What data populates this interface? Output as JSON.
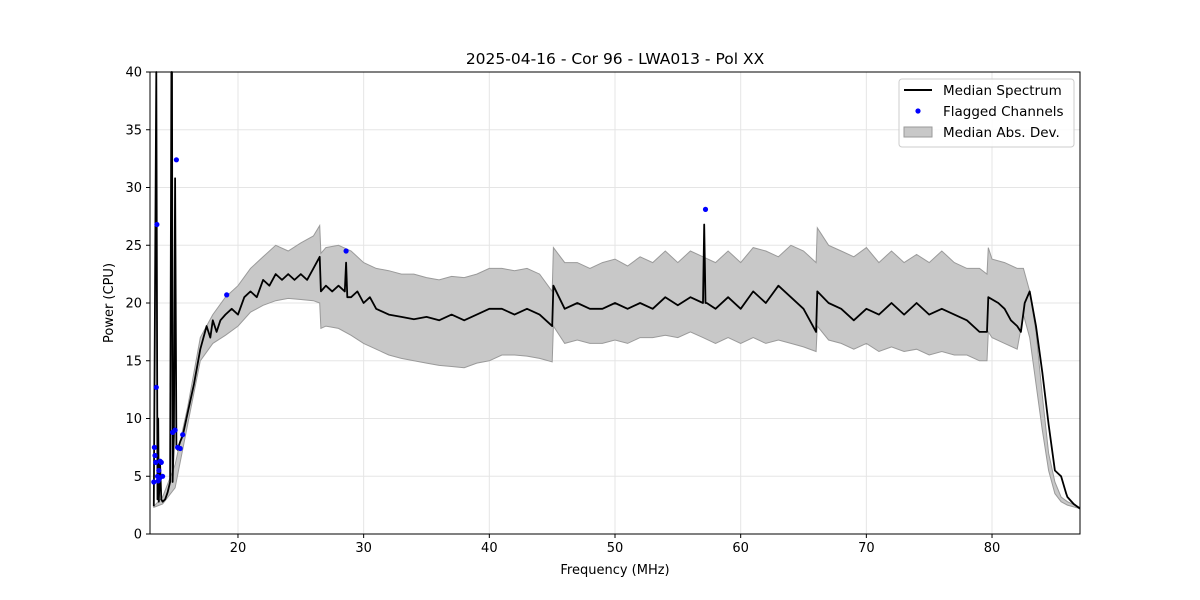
{
  "chart_data": {
    "type": "line",
    "title": "2025-04-16 - Cor 96 - LWA013 - Pol XX",
    "xlabel": "Frequency (MHz)",
    "ylabel": "Power (CPU)",
    "xlim": [
      13.0,
      87.0
    ],
    "ylim": [
      0,
      40
    ],
    "xticks": [
      20,
      30,
      40,
      50,
      60,
      70,
      80
    ],
    "yticks": [
      0,
      5,
      10,
      15,
      20,
      25,
      30,
      35,
      40
    ],
    "grid": true,
    "legend_position": "top-right",
    "colors": {
      "median": "#000000",
      "flagged": "#0000ff",
      "mad_fill": "#c8c8c8",
      "mad_edge": "#9a9a9a"
    },
    "series": [
      {
        "name": "Median Spectrum",
        "kind": "line",
        "x": [
          13.3,
          13.5,
          13.6,
          13.65,
          13.7,
          13.8,
          13.9,
          14.0,
          14.2,
          14.4,
          14.6,
          14.7,
          14.75,
          14.8,
          14.9,
          15.0,
          15.1,
          15.2,
          15.4,
          15.6,
          16.0,
          16.5,
          17.0,
          17.5,
          17.8,
          18.0,
          18.3,
          18.6,
          19.0,
          19.5,
          20.0,
          20.5,
          21.0,
          21.5,
          22.0,
          22.5,
          23.0,
          23.5,
          24.0,
          24.5,
          25.0,
          25.5,
          26.0,
          26.5,
          26.6,
          27.0,
          27.5,
          28.0,
          28.5,
          28.6,
          28.7,
          29.0,
          29.5,
          30.0,
          30.5,
          31.0,
          32.0,
          33.0,
          34.0,
          35.0,
          36.0,
          37.0,
          38.0,
          39.0,
          40.0,
          41.0,
          42.0,
          43.0,
          44.0,
          45.0,
          45.1,
          46.0,
          47.0,
          48.0,
          49.0,
          50.0,
          51.0,
          52.0,
          53.0,
          54.0,
          55.0,
          56.0,
          57.0,
          57.1,
          57.2,
          57.3,
          58.0,
          59.0,
          60.0,
          61.0,
          62.0,
          63.0,
          64.0,
          65.0,
          66.0,
          66.1,
          67.0,
          68.0,
          69.0,
          70.0,
          71.0,
          72.0,
          73.0,
          74.0,
          75.0,
          76.0,
          77.0,
          78.0,
          79.0,
          79.6,
          79.7,
          80.5,
          81.0,
          81.5,
          82.0,
          82.3,
          82.6,
          83.0,
          83.5,
          84.0,
          84.5,
          85.0,
          85.5,
          85.9,
          86.0,
          86.5,
          87.0
        ],
        "y": [
          2.4,
          40.0,
          3.0,
          10.0,
          2.8,
          6.0,
          3.0,
          2.8,
          3.0,
          3.6,
          4.5,
          40.0,
          40.0,
          4.5,
          8.5,
          30.8,
          7.5,
          7.3,
          8.0,
          8.5,
          10.5,
          13.0,
          16.0,
          18.0,
          17.0,
          18.5,
          17.5,
          18.5,
          19.0,
          19.5,
          19.0,
          20.5,
          21.0,
          20.5,
          22.0,
          21.5,
          22.5,
          22.0,
          22.5,
          22.0,
          22.5,
          22.0,
          23.0,
          24.0,
          21.0,
          21.5,
          21.0,
          21.5,
          21.0,
          23.5,
          20.5,
          20.5,
          21.0,
          20.0,
          20.5,
          19.5,
          19.0,
          18.8,
          18.6,
          18.8,
          18.5,
          19.0,
          18.5,
          19.0,
          19.5,
          19.5,
          19.0,
          19.5,
          19.0,
          18.0,
          21.5,
          19.5,
          20.0,
          19.5,
          19.5,
          20.0,
          19.5,
          20.0,
          19.5,
          20.5,
          19.8,
          20.5,
          20.0,
          26.8,
          20.0,
          20.0,
          19.5,
          20.5,
          19.5,
          21.0,
          20.0,
          21.5,
          20.5,
          19.5,
          17.5,
          21.0,
          20.0,
          19.5,
          18.5,
          19.5,
          19.0,
          20.0,
          19.0,
          20.0,
          19.0,
          19.5,
          19.0,
          18.5,
          17.5,
          17.5,
          20.5,
          20.0,
          19.5,
          18.5,
          18.0,
          17.5,
          20.0,
          21.0,
          18.0,
          14.0,
          9.5,
          5.5,
          5.0,
          3.5,
          3.2,
          2.6,
          2.2
        ]
      },
      {
        "name": "Flagged Channels",
        "kind": "scatter",
        "x": [
          13.3,
          13.35,
          13.4,
          13.45,
          13.5,
          13.55,
          13.6,
          13.65,
          13.7,
          13.75,
          13.8,
          13.9,
          14.0,
          14.8,
          15.0,
          15.1,
          15.2,
          15.4,
          15.6,
          19.1,
          28.6,
          57.2
        ],
        "y": [
          4.5,
          7.5,
          6.8,
          6.2,
          12.7,
          26.8,
          5.0,
          4.6,
          5.5,
          4.8,
          6.3,
          6.2,
          5.0,
          8.8,
          9.0,
          32.4,
          7.5,
          7.4,
          8.6,
          20.7,
          24.5,
          28.1
        ]
      },
      {
        "name": "Median Abs. Dev.",
        "kind": "band",
        "x": [
          13.3,
          14.0,
          15.0,
          16.0,
          17.0,
          18.0,
          19.0,
          20.0,
          21.0,
          22.0,
          23.0,
          24.0,
          25.0,
          26.0,
          26.5,
          26.6,
          27.0,
          28.0,
          29.0,
          30.0,
          31.0,
          32.0,
          33.0,
          34.0,
          35.0,
          36.0,
          37.0,
          38.0,
          39.0,
          40.0,
          41.0,
          42.0,
          43.0,
          44.0,
          45.0,
          45.1,
          46.0,
          47.0,
          48.0,
          49.0,
          50.0,
          51.0,
          52.0,
          53.0,
          54.0,
          55.0,
          56.0,
          57.0,
          58.0,
          59.0,
          60.0,
          61.0,
          62.0,
          63.0,
          64.0,
          65.0,
          66.0,
          66.1,
          67.0,
          68.0,
          69.0,
          70.0,
          71.0,
          72.0,
          73.0,
          74.0,
          75.0,
          76.0,
          77.0,
          78.0,
          79.0,
          79.6,
          79.7,
          80.0,
          81.0,
          82.0,
          82.5,
          83.0,
          83.5,
          84.0,
          84.5,
          85.0,
          85.5,
          86.0,
          87.0
        ],
        "lower": [
          2.3,
          2.6,
          4.0,
          9.5,
          15.0,
          16.5,
          17.2,
          18.0,
          19.2,
          19.8,
          20.2,
          20.4,
          20.3,
          20.2,
          20.0,
          17.8,
          18.0,
          17.8,
          17.2,
          16.5,
          16.0,
          15.5,
          15.2,
          15.0,
          14.8,
          14.6,
          14.5,
          14.4,
          14.8,
          15.0,
          15.5,
          15.5,
          15.4,
          15.2,
          14.9,
          18.0,
          16.5,
          16.8,
          16.5,
          16.5,
          16.8,
          16.5,
          17.0,
          17.0,
          17.2,
          17.0,
          17.5,
          17.0,
          16.5,
          17.0,
          16.5,
          17.0,
          16.5,
          16.8,
          16.5,
          16.2,
          15.8,
          18.0,
          16.8,
          16.5,
          16.0,
          16.5,
          15.8,
          16.2,
          15.8,
          16.0,
          15.5,
          15.8,
          15.5,
          15.5,
          15.0,
          15.0,
          17.5,
          17.0,
          16.5,
          16.0,
          19.0,
          17.0,
          13.0,
          9.0,
          5.5,
          3.5,
          2.8,
          2.5,
          2.2
        ],
        "upper": [
          2.4,
          3.2,
          6.0,
          11.0,
          17.0,
          19.0,
          20.5,
          21.5,
          23.0,
          24.0,
          25.0,
          24.5,
          25.2,
          25.8,
          26.7,
          24.3,
          24.8,
          25.0,
          24.5,
          23.5,
          23.0,
          22.8,
          22.5,
          22.5,
          22.2,
          22.0,
          22.3,
          22.2,
          22.5,
          23.0,
          23.0,
          22.8,
          23.0,
          22.5,
          21.0,
          24.8,
          23.5,
          23.5,
          23.0,
          23.5,
          23.8,
          23.2,
          24.0,
          23.5,
          24.5,
          23.5,
          24.5,
          24.0,
          23.5,
          24.5,
          23.5,
          24.8,
          24.5,
          24.0,
          25.0,
          24.5,
          23.5,
          26.5,
          25.0,
          24.5,
          24.0,
          24.8,
          23.5,
          24.5,
          23.5,
          24.2,
          23.5,
          24.5,
          23.5,
          23.0,
          23.0,
          22.5,
          24.8,
          23.8,
          23.5,
          23.0,
          23.0,
          21.0,
          17.5,
          12.0,
          7.0,
          4.5,
          3.2,
          2.8,
          2.3
        ]
      }
    ]
  }
}
